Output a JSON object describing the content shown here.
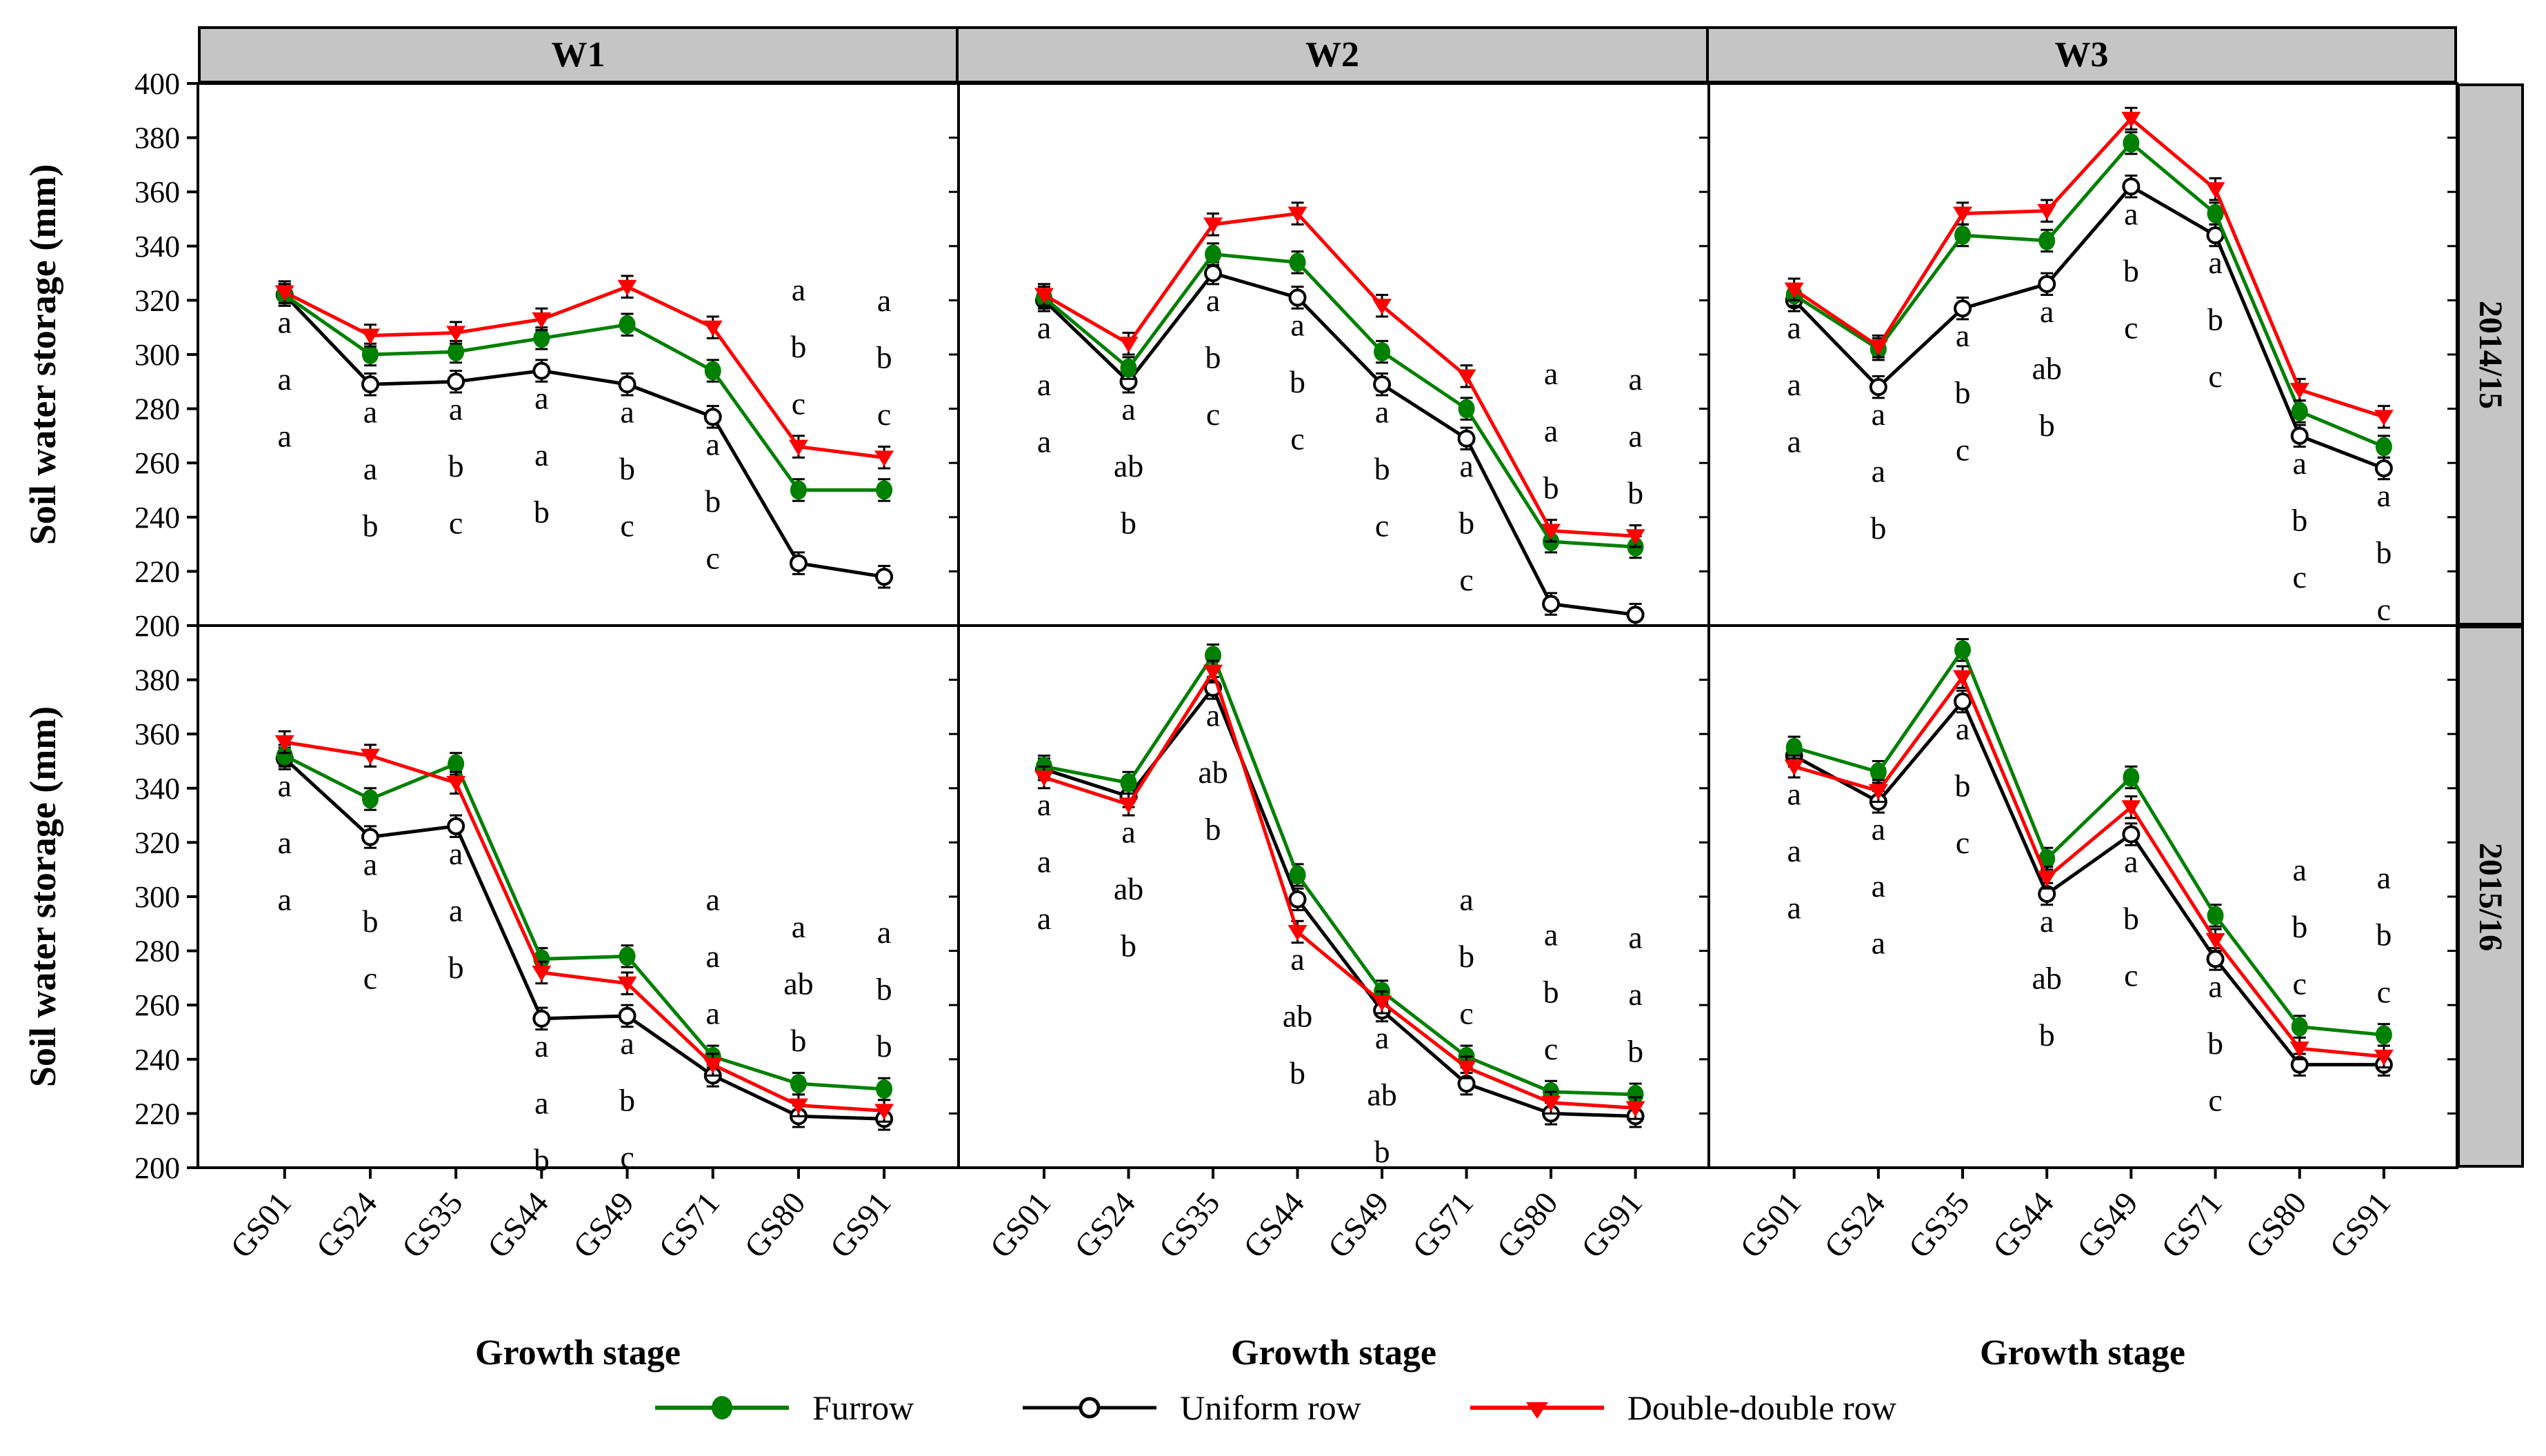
{
  "figure": {
    "y_axis_title": "Soil water storage (mm)",
    "x_axis_title": "Growth stage",
    "col_headers": [
      "W1",
      "W2",
      "W3"
    ],
    "row_headers": [
      "2014/15",
      "2015/16"
    ],
    "colors": {
      "furrow": "#008000",
      "uniform_row": "#000000",
      "double_double_row": "#ff0000",
      "header_band": "#c5c5c5",
      "border": "#000000"
    },
    "legend": [
      {
        "label": "Furrow",
        "marker": "filled-circle",
        "color": "#008000"
      },
      {
        "label": "Uniform row",
        "marker": "open-circle",
        "color": "#000000"
      },
      {
        "label": "Double-double row",
        "marker": "filled-triangle-down",
        "color": "#ff0000"
      }
    ]
  },
  "chart_data": {
    "type": "line",
    "categories": [
      "GS01",
      "GS24",
      "GS35",
      "GS44",
      "GS49",
      "GS71",
      "GS80",
      "GS91"
    ],
    "ylabel": "Soil water storage (mm)",
    "xlabel": "Growth stage",
    "ylim": [
      200,
      400
    ],
    "y_ticks_top_row": [
      400,
      380,
      360,
      340,
      320,
      300,
      280,
      260,
      240,
      220,
      200
    ],
    "y_ticks_bottom_row": [
      380,
      360,
      340,
      320,
      300,
      280,
      260,
      240,
      220,
      200
    ],
    "error_bar_mm": 4,
    "legend_position": "bottom-center",
    "grid": false,
    "panels": [
      {
        "col": "W1",
        "row": "2014/15",
        "series": [
          {
            "name": "Furrow",
            "values": [
              322,
              300,
              301,
              306,
              311,
              294,
              250,
              250
            ]
          },
          {
            "name": "Uniform row",
            "values": [
              322,
              289,
              290,
              294,
              289,
              277,
              223,
              218
            ]
          },
          {
            "name": "Double-double row",
            "values": [
              323,
              307,
              308,
              313,
              325,
              310,
              266,
              262
            ]
          }
        ],
        "letters": [
          [
            "a",
            "a",
            "a"
          ],
          [
            "a",
            "a",
            "b"
          ],
          [
            "a",
            "b",
            "c"
          ],
          [
            "a",
            "a",
            "b"
          ],
          [
            "a",
            "b",
            "c"
          ],
          [
            "a",
            "b",
            "c"
          ],
          [
            "a",
            "b",
            "c"
          ],
          [
            "a",
            "b",
            "c"
          ]
        ],
        "letters_pos": [
          "below",
          "below",
          "below",
          "below",
          "below",
          "below",
          "above",
          "above"
        ]
      },
      {
        "col": "W2",
        "row": "2014/15",
        "series": [
          {
            "name": "Furrow",
            "values": [
              321,
              295,
              337,
              334,
              301,
              280,
              231,
              229
            ]
          },
          {
            "name": "Uniform row",
            "values": [
              320,
              290,
              330,
              321,
              289,
              269,
              208,
              204
            ]
          },
          {
            "name": "Double-double row",
            "values": [
              322,
              304,
              348,
              352,
              318,
              292,
              235,
              233
            ]
          }
        ],
        "letters": [
          [
            "a",
            "a",
            "a"
          ],
          [
            "a",
            "ab",
            "b"
          ],
          [
            "a",
            "b",
            "c"
          ],
          [
            "a",
            "b",
            "c"
          ],
          [
            "a",
            "b",
            "c"
          ],
          [
            "a",
            "b",
            "c"
          ],
          [
            "a",
            "a",
            "b"
          ],
          [
            "a",
            "a",
            "b"
          ]
        ],
        "letters_pos": [
          "below",
          "below",
          "below",
          "below",
          "below",
          "below",
          "above",
          "above"
        ]
      },
      {
        "col": "W3",
        "row": "2014/15",
        "series": [
          {
            "name": "Furrow",
            "values": [
              322,
              302,
              344,
              342,
              378,
              352,
              279,
              266
            ]
          },
          {
            "name": "Uniform row",
            "values": [
              320,
              288,
              317,
              326,
              362,
              344,
              270,
              258
            ]
          },
          {
            "name": "Double-double row",
            "values": [
              324,
              303,
              352,
              353,
              387,
              361,
              287,
              277
            ]
          }
        ],
        "letters": [
          [
            "a",
            "a",
            "a"
          ],
          [
            "a",
            "a",
            "b"
          ],
          [
            "a",
            "b",
            "c"
          ],
          [
            "a",
            "ab",
            "b"
          ],
          [
            "a",
            "b",
            "c"
          ],
          [
            "a",
            "b",
            "c"
          ],
          [
            "a",
            "b",
            "c"
          ],
          [
            "a",
            "b",
            "c"
          ]
        ],
        "letters_pos": [
          "below",
          "below",
          "below",
          "below",
          "below",
          "below",
          "below",
          "below"
        ]
      },
      {
        "col": "W1",
        "row": "2015/16",
        "series": [
          {
            "name": "Furrow",
            "values": [
              352,
              336,
              349,
              277,
              278,
              241,
              231,
              229
            ]
          },
          {
            "name": "Uniform row",
            "values": [
              351,
              322,
              326,
              255,
              256,
              234,
              219,
              218
            ]
          },
          {
            "name": "Double-double row",
            "values": [
              357,
              352,
              342,
              272,
              268,
              238,
              223,
              221
            ]
          }
        ],
        "letters": [
          [
            "a",
            "a",
            "a"
          ],
          [
            "a",
            "b",
            "c"
          ],
          [
            "a",
            "a",
            "b"
          ],
          [
            "a",
            "a",
            "b"
          ],
          [
            "a",
            "b",
            "c"
          ],
          [
            "a",
            "a",
            "a"
          ],
          [
            "a",
            "ab",
            "b"
          ],
          [
            "a",
            "b",
            "b"
          ]
        ],
        "letters_pos": [
          "below",
          "below",
          "below",
          "below",
          "below",
          "above",
          "above",
          "above"
        ]
      },
      {
        "col": "W2",
        "row": "2015/16",
        "series": [
          {
            "name": "Furrow",
            "values": [
              348,
              342,
              389,
              308,
              265,
              241,
              228,
              227
            ]
          },
          {
            "name": "Uniform row",
            "values": [
              347,
              337,
              377,
              299,
              258,
              231,
              220,
              219
            ]
          },
          {
            "name": "Double-double row",
            "values": [
              344,
              334,
              383,
              287,
              261,
              237,
              224,
              222
            ]
          }
        ],
        "letters": [
          [
            "a",
            "a",
            "a"
          ],
          [
            "a",
            "ab",
            "b"
          ],
          [
            "a",
            "ab",
            "b"
          ],
          [
            "a",
            "ab",
            "b"
          ],
          [
            "a",
            "ab",
            "b"
          ],
          [
            "a",
            "b",
            "c"
          ],
          [
            "a",
            "b",
            "c"
          ],
          [
            "a",
            "a",
            "b"
          ]
        ],
        "letters_pos": [
          "below",
          "below",
          "below",
          "below",
          "below",
          "above",
          "above",
          "above"
        ]
      },
      {
        "col": "W3",
        "row": "2015/16",
        "series": [
          {
            "name": "Furrow",
            "values": [
              355,
              346,
              391,
              314,
              344,
              293,
              252,
              249
            ]
          },
          {
            "name": "Uniform row",
            "values": [
              352,
              335,
              372,
              301,
              323,
              277,
              238,
              238
            ]
          },
          {
            "name": "Double-double row",
            "values": [
              348,
              339,
              381,
              307,
              333,
              284,
              244,
              241
            ]
          }
        ],
        "letters": [
          [
            "a",
            "a",
            "a"
          ],
          [
            "a",
            "a",
            "a"
          ],
          [
            "a",
            "b",
            "c"
          ],
          [
            "a",
            "ab",
            "b"
          ],
          [
            "a",
            "b",
            "c"
          ],
          [
            "a",
            "b",
            "c"
          ],
          [
            "a",
            "b",
            "c"
          ],
          [
            "a",
            "b",
            "c"
          ]
        ],
        "letters_pos": [
          "below",
          "below",
          "below",
          "below",
          "below",
          "below",
          "above",
          "above"
        ]
      }
    ]
  }
}
